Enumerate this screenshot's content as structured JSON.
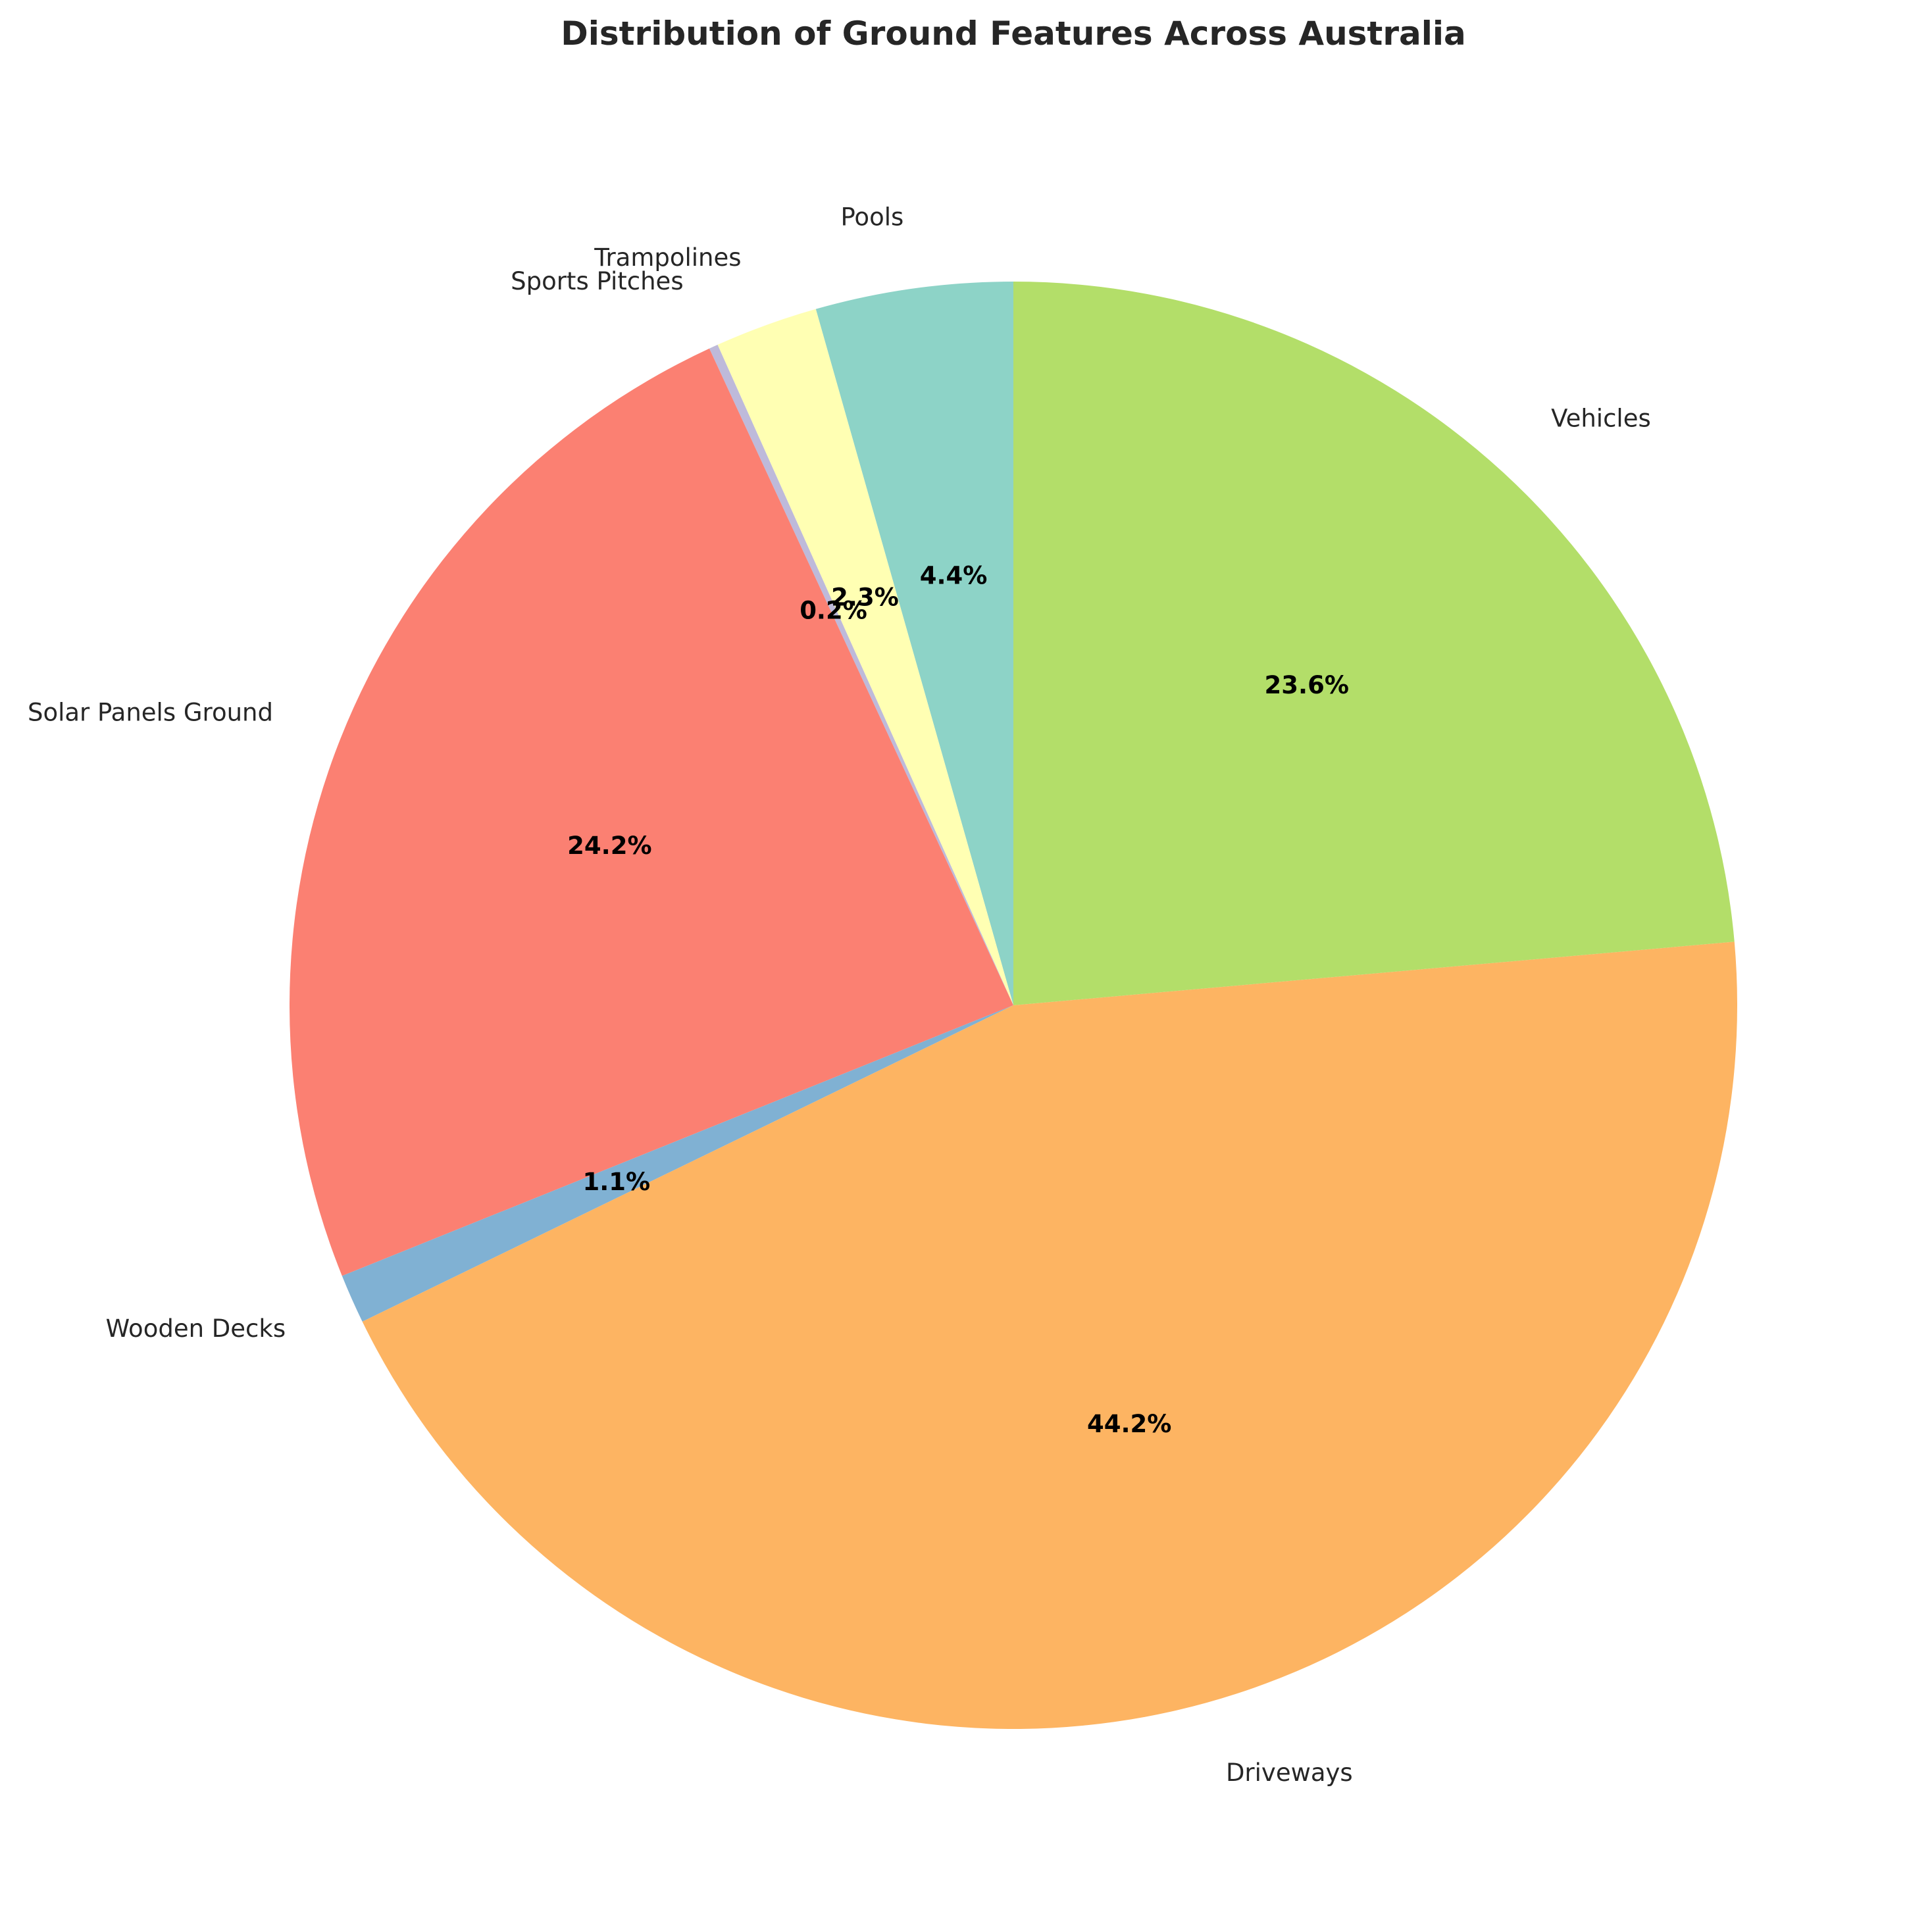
{
  "chart_data": {
    "type": "pie",
    "title": "Distribution of Ground Features Across Australia",
    "start_angle_deg": 90,
    "direction": "counterclockwise",
    "slices": [
      {
        "label": "Pools",
        "value": 4.4,
        "pct_label": "4.4%",
        "color": "#8dd3c7"
      },
      {
        "label": "Trampolines",
        "value": 2.3,
        "pct_label": "2.3%",
        "color": "#ffffb3"
      },
      {
        "label": "Sports Pitches",
        "value": 0.2,
        "pct_label": "0.2%",
        "color": "#bebada"
      },
      {
        "label": "Solar Panels Ground",
        "value": 24.2,
        "pct_label": "24.2%",
        "color": "#fb8072"
      },
      {
        "label": "Wooden Decks",
        "value": 1.1,
        "pct_label": "1.1%",
        "color": "#80b1d3"
      },
      {
        "label": "Driveways",
        "value": 44.2,
        "pct_label": "44.2%",
        "color": "#fdb462"
      },
      {
        "label": "Vehicles",
        "value": 23.6,
        "pct_label": "23.6%",
        "color": "#b3de69"
      }
    ]
  }
}
